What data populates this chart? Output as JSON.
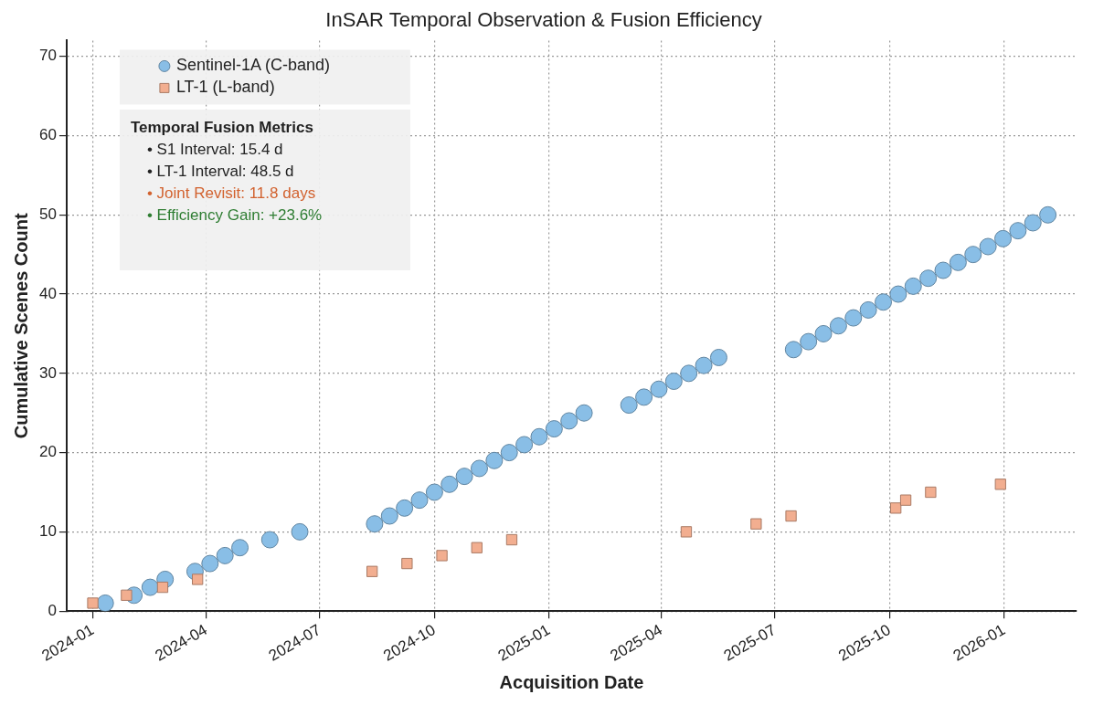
{
  "chart_data": {
    "type": "scatter",
    "title": "InSAR Temporal Observation & Fusion Efficiency",
    "xlabel": "Acquisition Date",
    "ylabel": "Cumulative Scenes Count",
    "xlim": [
      "2023-12-11",
      "2026-02-28"
    ],
    "xticks": [
      "2024-01",
      "2024-04",
      "2024-07",
      "2024-10",
      "2025-01",
      "2025-04",
      "2025-07",
      "2025-10",
      "2026-01"
    ],
    "ylim": [
      0,
      72
    ],
    "yticks": [
      0,
      10,
      20,
      30,
      40,
      50,
      60,
      70
    ],
    "grid": true,
    "legend": "top left",
    "series": [
      {
        "name": "Sentinel-1A (C-band)",
        "color": "#89bee6",
        "marker": "circle",
        "x": [
          "2024-01-11",
          "2024-02-03",
          "2024-02-16",
          "2024-02-28",
          "2024-03-23",
          "2024-04-04",
          "2024-04-16",
          "2024-04-28",
          "2024-05-22",
          "2024-06-15",
          "2024-08-14",
          "2024-08-26",
          "2024-09-07",
          "2024-09-19",
          "2024-10-01",
          "2024-10-13",
          "2024-10-25",
          "2024-11-06",
          "2024-11-18",
          "2024-11-30",
          "2024-12-12",
          "2024-12-24",
          "2025-01-05",
          "2025-01-17",
          "2025-01-29",
          "2025-03-06",
          "2025-03-18",
          "2025-03-30",
          "2025-04-11",
          "2025-04-23",
          "2025-05-05",
          "2025-05-17",
          "2025-07-16",
          "2025-07-28",
          "2025-08-09",
          "2025-08-21",
          "2025-09-02",
          "2025-09-14",
          "2025-09-26",
          "2025-10-08",
          "2025-10-20",
          "2025-11-01",
          "2025-11-13",
          "2025-11-25",
          "2025-12-07",
          "2025-12-19",
          "2025-12-31",
          "2026-01-12",
          "2026-01-24",
          "2026-02-05"
        ],
        "values": [
          1,
          2,
          3,
          4,
          5,
          6,
          7,
          8,
          9,
          10,
          11,
          12,
          13,
          14,
          15,
          16,
          17,
          18,
          19,
          20,
          21,
          22,
          23,
          24,
          25,
          26,
          27,
          28,
          29,
          30,
          31,
          32,
          33,
          34,
          35,
          36,
          37,
          38,
          39,
          40,
          41,
          42,
          43,
          44,
          45,
          46,
          47,
          48,
          49,
          50
        ]
      },
      {
        "name": "LT-1 (L-band)",
        "color": "#f2ae90",
        "marker": "square",
        "x": [
          "2024-01-01",
          "2024-01-28",
          "2024-02-26",
          "2024-03-25",
          "2024-08-12",
          "2024-09-09",
          "2024-10-07",
          "2024-11-04",
          "2024-12-02",
          "2025-04-21",
          "2025-06-16",
          "2025-07-14",
          "2025-10-06",
          "2025-10-14",
          "2025-11-03",
          "2025-12-29"
        ],
        "values": [
          1,
          2,
          3,
          4,
          5,
          6,
          7,
          8,
          9,
          10,
          11,
          12,
          13,
          14,
          15,
          16
        ]
      }
    ],
    "annotations": [
      "Temporal Fusion Metrics",
      "• S1 Interval: 15.4 d",
      "• LT-1 Interval: 48.5 d",
      "• Joint Revisit: 11.8 days",
      "• Efficiency Gain: +23.6%"
    ]
  }
}
